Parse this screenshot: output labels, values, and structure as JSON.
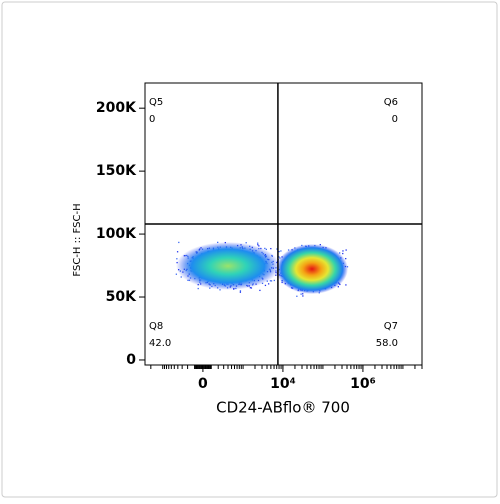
{
  "chart_data": {
    "type": "density",
    "x_label": "CD24-ABflo® 700",
    "y_label": "FSC-H :: FSC-H",
    "xlim": [
      -2800,
      30000000
    ],
    "xticks": [
      0,
      {
        "value": 10000,
        "label": "10⁴"
      },
      {
        "value": 1000000,
        "label": "10⁶"
      }
    ],
    "ylim": [
      -4000,
      220000
    ],
    "yticks": [
      0,
      {
        "value": 50000,
        "label": "50K"
      },
      {
        "value": 100000,
        "label": "100K"
      },
      {
        "value": 150000,
        "label": "150K"
      },
      {
        "value": 200000,
        "label": "200K"
      }
    ],
    "gate": {
      "x": 7500,
      "y": 108000
    },
    "quadrants": {
      "names": [
        "Q5",
        "Q6",
        "Q8",
        "Q7"
      ],
      "values": [
        0,
        0,
        42,
        58
      ],
      "value_labels": [
        "0",
        "0",
        "42.0",
        "58.0"
      ]
    }
  }
}
